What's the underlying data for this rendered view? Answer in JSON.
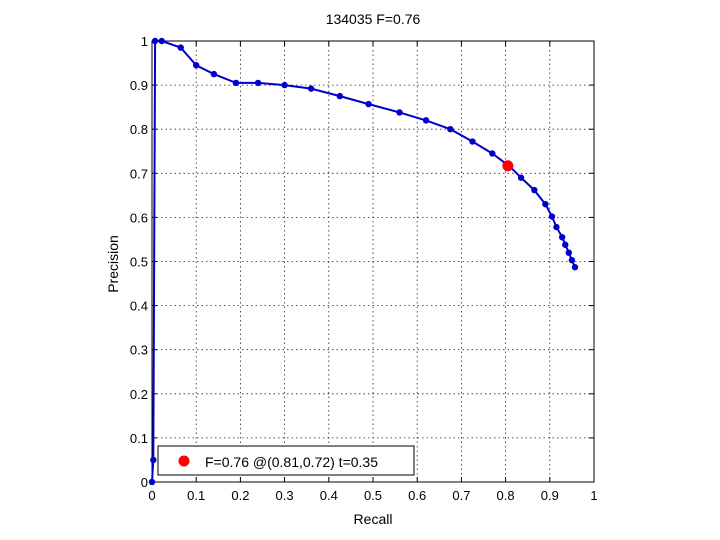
{
  "chart_data": {
    "type": "line",
    "title": "134035 F=0.76",
    "xlabel": "Recall",
    "ylabel": "Precision",
    "xlim": [
      0,
      1
    ],
    "ylim": [
      0,
      1
    ],
    "xticks": [
      "0",
      "0.1",
      "0.2",
      "0.3",
      "0.4",
      "0.5",
      "0.6",
      "0.7",
      "0.8",
      "0.9",
      "1"
    ],
    "yticks": [
      "0",
      "0.1",
      "0.2",
      "0.3",
      "0.4",
      "0.5",
      "0.6",
      "0.7",
      "0.8",
      "0.9",
      "1"
    ],
    "grid": true,
    "series": [
      {
        "color": "#0000cc",
        "x": [
          0.0,
          0.003,
          0.007,
          0.022,
          0.065,
          0.1,
          0.14,
          0.19,
          0.24,
          0.3,
          0.36,
          0.425,
          0.49,
          0.56,
          0.62,
          0.675,
          0.725,
          0.77,
          0.81,
          0.835,
          0.865,
          0.89,
          0.905,
          0.915,
          0.928,
          0.935,
          0.943,
          0.95,
          0.957
        ],
        "y": [
          0.0,
          0.05,
          1.0,
          1.0,
          0.985,
          0.945,
          0.925,
          0.905,
          0.905,
          0.9,
          0.892,
          0.875,
          0.857,
          0.838,
          0.82,
          0.8,
          0.772,
          0.745,
          0.715,
          0.69,
          0.662,
          0.63,
          0.602,
          0.578,
          0.555,
          0.538,
          0.52,
          0.503,
          0.487
        ]
      }
    ],
    "highlight": {
      "x": 0.805,
      "y": 0.717,
      "color": "#ff0000"
    },
    "legend": {
      "position": "bottom-left",
      "text": "F=0.76 @(0.81,0.72) t=0.35"
    }
  }
}
